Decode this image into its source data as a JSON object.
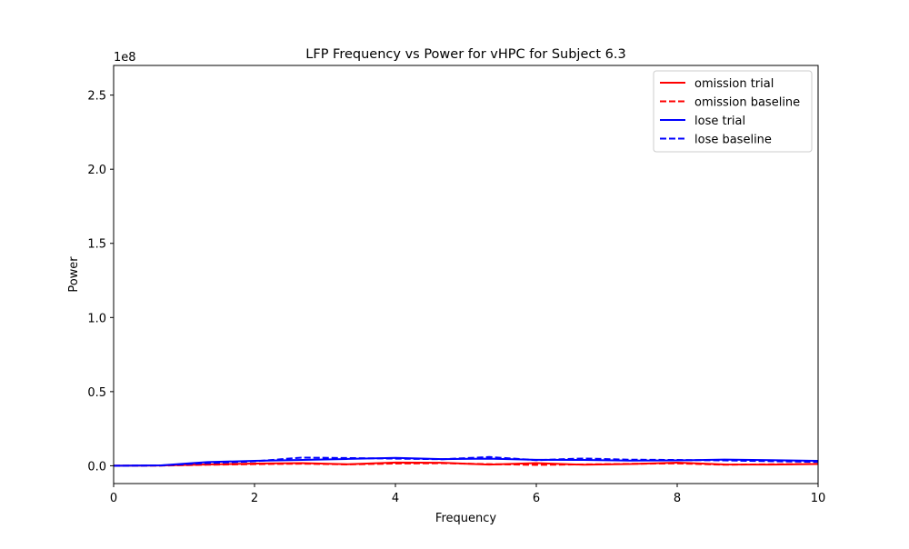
{
  "chart_data": {
    "type": "line",
    "title": "LFP Frequency vs Power for vHPC for Subject 6.3",
    "xlabel": "Frequency",
    "ylabel": "Power",
    "y_offset_label": "1e8",
    "xlim": [
      0,
      10
    ],
    "ylim": [
      -12000000,
      270000000
    ],
    "x_ticks": [
      0,
      2,
      4,
      6,
      8,
      10
    ],
    "x_tick_labels": [
      "0",
      "2",
      "4",
      "6",
      "8",
      "10"
    ],
    "y_ticks": [
      0,
      50000000,
      100000000,
      150000000,
      200000000,
      250000000
    ],
    "y_tick_labels": [
      "0.0",
      "0.5",
      "1.0",
      "1.5",
      "2.0",
      "2.5"
    ],
    "legend_position": "top-right",
    "grid": false,
    "series": [
      {
        "name": "omission trial",
        "color": "#ff0000",
        "dash": "solid",
        "x": [
          0,
          0.67,
          1.33,
          2.0,
          2.67,
          3.33,
          4.0,
          4.67,
          5.33,
          6.0,
          6.67,
          7.33,
          8.0,
          8.67,
          9.33,
          10.0
        ],
        "y": [
          0,
          200000,
          900000,
          1500000,
          1800000,
          1000000,
          2200000,
          2000000,
          800000,
          1800000,
          700000,
          1200000,
          2100000,
          900000,
          800000,
          1200000
        ]
      },
      {
        "name": "omission baseline",
        "color": "#ff0000",
        "dash": "dashed",
        "x": [
          0,
          0.67,
          1.33,
          2.0,
          2.67,
          3.33,
          4.0,
          4.67,
          5.33,
          6.0,
          6.67,
          7.33,
          8.0,
          8.67,
          9.33,
          10.0
        ],
        "y": [
          0,
          100000,
          700000,
          1100000,
          1400000,
          900000,
          1500000,
          1700000,
          1100000,
          600000,
          900000,
          1300000,
          1600000,
          700000,
          1000000,
          1300000
        ]
      },
      {
        "name": "lose trial",
        "color": "#0000ff",
        "dash": "solid",
        "x": [
          0,
          0.67,
          1.33,
          2.0,
          2.67,
          3.33,
          4.0,
          4.67,
          5.33,
          6.0,
          6.67,
          7.33,
          8.0,
          8.67,
          9.33,
          10.0
        ],
        "y": [
          0,
          300000,
          2500000,
          3300000,
          3900000,
          4600000,
          5300000,
          4500000,
          4800000,
          4000000,
          3900000,
          3500000,
          3600000,
          4200000,
          3800000,
          3300000
        ]
      },
      {
        "name": "lose baseline",
        "color": "#0000ff",
        "dash": "dashed",
        "x": [
          0,
          0.67,
          1.33,
          2.0,
          2.67,
          3.33,
          4.0,
          4.67,
          5.33,
          6.0,
          6.67,
          7.33,
          8.0,
          8.67,
          9.33,
          10.0
        ],
        "y": [
          0,
          200000,
          1800000,
          3000000,
          5500000,
          5200000,
          4800000,
          4400000,
          5900000,
          3800000,
          4900000,
          4100000,
          3900000,
          3600000,
          3100000,
          2600000
        ]
      }
    ]
  }
}
